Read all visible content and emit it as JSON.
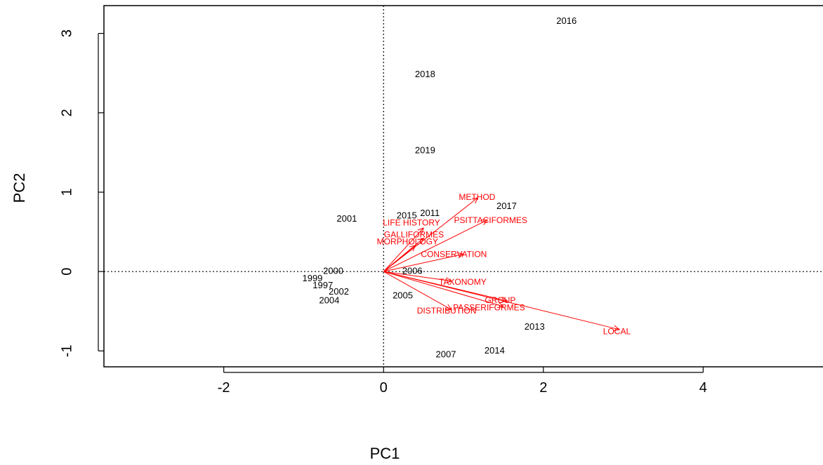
{
  "chart_data": {
    "type": "scatter",
    "subtype": "biplot",
    "xlabel": "PC1",
    "ylabel": "PC2",
    "xlim": [
      -3.5,
      5.5
    ],
    "ylim": [
      -1.2,
      3.35
    ],
    "x_ticks": [
      -2,
      0,
      2,
      4
    ],
    "y_ticks": [
      -1,
      0,
      1,
      2,
      3
    ],
    "reference_lines": {
      "x": 0,
      "y": 0,
      "style": "dotted"
    },
    "colors": {
      "points": "#000000",
      "loadings": "#ff0000"
    },
    "observations": [
      {
        "label": "2016",
        "x": 2.29,
        "y": 3.15
      },
      {
        "label": "2018",
        "x": 0.52,
        "y": 2.48
      },
      {
        "label": "2019",
        "x": 0.52,
        "y": 1.52
      },
      {
        "label": "2017",
        "x": 1.54,
        "y": 0.82
      },
      {
        "label": "2001",
        "x": -0.46,
        "y": 0.66
      },
      {
        "label": "2015",
        "x": 0.29,
        "y": 0.7
      },
      {
        "label": "2011",
        "x": 0.58,
        "y": 0.73
      },
      {
        "label": "2000",
        "x": -0.63,
        "y": 0.0
      },
      {
        "label": "2006",
        "x": 0.36,
        "y": 0.0
      },
      {
        "label": "1999",
        "x": -0.89,
        "y": -0.09
      },
      {
        "label": "1997",
        "x": -0.76,
        "y": -0.18
      },
      {
        "label": "2002",
        "x": -0.56,
        "y": -0.26
      },
      {
        "label": "2004",
        "x": -0.68,
        "y": -0.37
      },
      {
        "label": "2005",
        "x": 0.24,
        "y": -0.31
      },
      {
        "label": "2013",
        "x": 1.89,
        "y": -0.7
      },
      {
        "label": "2014",
        "x": 1.39,
        "y": -1.0
      },
      {
        "label": "2007",
        "x": 0.78,
        "y": -1.05
      }
    ],
    "loadings": [
      {
        "label": "METHOD",
        "x": 1.18,
        "y": 0.93,
        "lx": 1.17,
        "ly": 0.93
      },
      {
        "label": "PSITTACIFORMES",
        "x": 1.3,
        "y": 0.65,
        "lx": 1.34,
        "ly": 0.64
      },
      {
        "label": "LIFE HISTORY",
        "x": 0.5,
        "y": 0.55,
        "lx": 0.35,
        "ly": 0.61
      },
      {
        "label": "GALLIFORMES",
        "x": 0.5,
        "y": 0.42,
        "lx": 0.38,
        "ly": 0.46
      },
      {
        "label": "MORPHOLOGY",
        "x": 0.4,
        "y": 0.33,
        "lx": 0.3,
        "ly": 0.37
      },
      {
        "label": "CONSERVATION",
        "x": 1.0,
        "y": 0.22,
        "lx": 0.88,
        "ly": 0.21
      },
      {
        "label": "TAXONOMY",
        "x": 0.85,
        "y": -0.12,
        "lx": 0.99,
        "ly": -0.14
      },
      {
        "label": "GROUP",
        "x": 1.55,
        "y": -0.37,
        "lx": 1.46,
        "ly": -0.37
      },
      {
        "label": "PASSERIFORMES",
        "x": 1.5,
        "y": -0.44,
        "lx": 1.32,
        "ly": -0.46
      },
      {
        "label": "DISTRIBUTION",
        "x": 0.85,
        "y": -0.48,
        "lx": 0.79,
        "ly": -0.5
      },
      {
        "label": "LOCAL",
        "x": 2.95,
        "y": -0.73,
        "lx": 2.92,
        "ly": -0.76
      }
    ]
  }
}
